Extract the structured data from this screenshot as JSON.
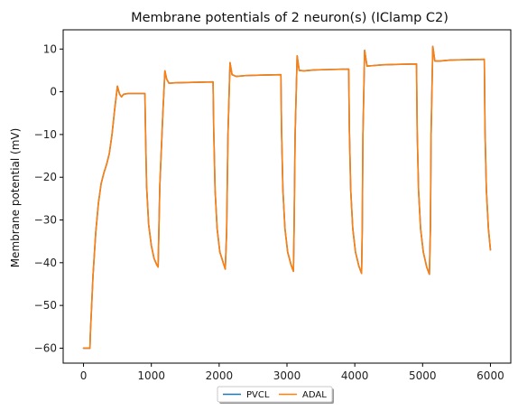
{
  "chart_data": {
    "type": "line",
    "title": "Membrane potentials of 2 neuron(s) (IClamp C2)",
    "xlabel": "",
    "ylabel": "Membrane potential (mV)",
    "xlim": [
      -300,
      6300
    ],
    "ylim": [
      -63.5,
      14.5
    ],
    "xticks": [
      0,
      1000,
      2000,
      3000,
      4000,
      5000,
      6000
    ],
    "yticks": [
      -60,
      -50,
      -40,
      -30,
      -20,
      -10,
      0,
      10
    ],
    "xtick_labels": [
      "0",
      "1000",
      "2000",
      "3000",
      "4000",
      "5000",
      "6000"
    ],
    "ytick_labels": [
      "−60",
      "−50",
      "−40",
      "−30",
      "−20",
      "−10",
      "0",
      "10"
    ],
    "grid": false,
    "legend": {
      "placement": "bottom-center below axes",
      "columns": 2
    },
    "series": [
      {
        "name": "PVCL",
        "color": "#1f77b4",
        "x": [
          0,
          95,
          100,
          140,
          180,
          220,
          260,
          300,
          340,
          380,
          420,
          460,
          500,
          530,
          560,
          590,
          620,
          660,
          700,
          800,
          905,
          915,
          930,
          960,
          1000,
          1040,
          1080,
          1100,
          1125,
          1170,
          1200,
          1225,
          1260,
          1350,
          1600,
          1910,
          1920,
          1940,
          1970,
          2010,
          2060,
          2090,
          2110,
          2130,
          2160,
          2190,
          2250,
          2400,
          2600,
          2910,
          2920,
          2940,
          2970,
          3010,
          3060,
          3095,
          3105,
          3120,
          3150,
          3180,
          3250,
          3400,
          3600,
          3910,
          3920,
          3940,
          3970,
          4010,
          4060,
          4100,
          4110,
          4120,
          4145,
          4180,
          4250,
          4400,
          4600,
          4910,
          4920,
          4940,
          4970,
          5010,
          5060,
          5100,
          5115,
          5125,
          5150,
          5180,
          5250,
          5400,
          5600,
          5910,
          5920,
          5940,
          5970,
          6000
        ],
        "y": [
          -60,
          -60,
          -57,
          -43,
          -33,
          -26,
          -21.5,
          -19,
          -17,
          -14.5,
          -10,
          -4,
          1.3,
          -0.5,
          -1.2,
          -0.6,
          -0.5,
          -0.4,
          -0.4,
          -0.4,
          -0.4,
          -10,
          -22,
          -31,
          -36,
          -39,
          -40.5,
          -41,
          -22,
          -5,
          4.9,
          3,
          2,
          2.1,
          2.2,
          2.3,
          -9,
          -23,
          -32,
          -37.5,
          -40,
          -41.5,
          -33,
          -10,
          6.8,
          4,
          3.6,
          3.8,
          3.9,
          4,
          -9,
          -23,
          -32,
          -37.5,
          -40.5,
          -42,
          -32,
          -10,
          8.4,
          5,
          4.9,
          5.1,
          5.2,
          5.3,
          -9,
          -23,
          -32,
          -37.5,
          -40.8,
          -42.5,
          -32,
          -10,
          9.7,
          6,
          6.1,
          6.3,
          6.4,
          6.5,
          -9,
          -23,
          -32,
          -37.5,
          -41,
          -42.7,
          -32,
          -10,
          10.6,
          7.2,
          7.2,
          7.4,
          7.5,
          7.6,
          -9,
          -23,
          -32,
          -37
        ]
      },
      {
        "name": "ADAL",
        "color": "#ff7f0e",
        "x": [
          0,
          95,
          100,
          140,
          180,
          220,
          260,
          300,
          340,
          380,
          420,
          460,
          500,
          530,
          560,
          590,
          620,
          660,
          700,
          800,
          905,
          915,
          930,
          960,
          1000,
          1040,
          1080,
          1100,
          1125,
          1170,
          1200,
          1225,
          1260,
          1350,
          1600,
          1910,
          1920,
          1940,
          1970,
          2010,
          2060,
          2090,
          2110,
          2130,
          2160,
          2190,
          2250,
          2400,
          2600,
          2910,
          2920,
          2940,
          2970,
          3010,
          3060,
          3095,
          3105,
          3120,
          3150,
          3180,
          3250,
          3400,
          3600,
          3910,
          3920,
          3940,
          3970,
          4010,
          4060,
          4100,
          4110,
          4120,
          4145,
          4180,
          4250,
          4400,
          4600,
          4910,
          4920,
          4940,
          4970,
          5010,
          5060,
          5100,
          5115,
          5125,
          5150,
          5180,
          5250,
          5400,
          5600,
          5910,
          5920,
          5940,
          5970,
          6000
        ],
        "y": [
          -60,
          -60,
          -57,
          -43,
          -33,
          -26,
          -21.5,
          -19,
          -17,
          -14.5,
          -10,
          -4,
          1.3,
          -0.5,
          -1.2,
          -0.6,
          -0.5,
          -0.4,
          -0.4,
          -0.4,
          -0.4,
          -10,
          -22,
          -31,
          -36,
          -39,
          -40.5,
          -41,
          -22,
          -5,
          4.9,
          3,
          2,
          2.1,
          2.2,
          2.3,
          -9,
          -23,
          -32,
          -37.5,
          -40,
          -41.5,
          -33,
          -10,
          6.8,
          4,
          3.6,
          3.8,
          3.9,
          4,
          -9,
          -23,
          -32,
          -37.5,
          -40.5,
          -42,
          -32,
          -10,
          8.4,
          5,
          4.9,
          5.1,
          5.2,
          5.3,
          -9,
          -23,
          -32,
          -37.5,
          -40.8,
          -42.5,
          -32,
          -10,
          9.7,
          6,
          6.1,
          6.3,
          6.4,
          6.5,
          -9,
          -23,
          -32,
          -37.5,
          -41,
          -42.7,
          -32,
          -10,
          10.6,
          7.2,
          7.2,
          7.4,
          7.5,
          7.6,
          -9,
          -23,
          -32,
          -37
        ]
      }
    ]
  }
}
